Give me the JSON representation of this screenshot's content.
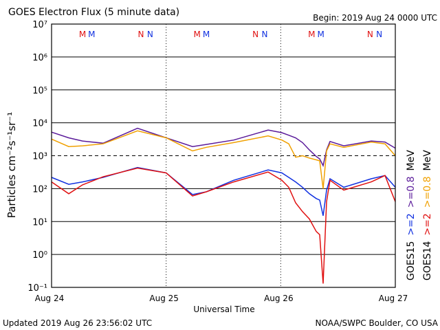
{
  "chart_data": {
    "type": "line",
    "title": "GOES Electron Flux (5 minute data)",
    "begin": "Begin: 2019 Aug 24 0000 UTC",
    "y_label": "Particles cm⁻²s⁻¹sr⁻¹",
    "x_label": "Universal Time",
    "footer_left": "Updated 2019 Aug 26 23:56:02 UTC",
    "footer_right": "NOAA/SWPC Boulder, CO USA",
    "y_log": true,
    "grid": true,
    "reference_line": 1000,
    "xlim": [
      0,
      3
    ],
    "xticks": [
      {
        "value": 0,
        "label": "Aug 24"
      },
      {
        "value": 1,
        "label": "Aug 25"
      },
      {
        "value": 2,
        "label": "Aug 26"
      },
      {
        "value": 3,
        "label": "Aug 27"
      }
    ],
    "ylim": [
      0.1,
      10000000
    ],
    "yticks": [
      {
        "value": 0.1,
        "label": "10⁻¹"
      },
      {
        "value": 1,
        "label": "10⁰"
      },
      {
        "value": 10,
        "label": "10¹"
      },
      {
        "value": 100,
        "label": "10²"
      },
      {
        "value": 1000,
        "label": "10³"
      },
      {
        "value": 10000,
        "label": "10⁴"
      },
      {
        "value": 100000,
        "label": "10⁵"
      },
      {
        "value": 1000000,
        "label": "10⁶"
      },
      {
        "value": 10000000,
        "label": "10⁷"
      }
    ],
    "x": [
      0,
      0.15,
      0.27,
      0.45,
      0.75,
      1.0,
      1.23,
      1.35,
      1.59,
      1.89,
      2.01,
      2.07,
      2.13,
      2.19,
      2.25,
      2.31,
      2.34,
      2.37,
      2.4,
      2.43,
      2.55,
      2.79,
      2.91,
      3.0
    ],
    "legend_unit": "MeV",
    "series": [
      {
        "name": ">=0.8",
        "satellite": "GOES15",
        "color": "#5a1a9a",
        "values": [
          5200,
          3500,
          2800,
          2400,
          6800,
          3500,
          1900,
          2200,
          3000,
          6000,
          5000,
          4200,
          3500,
          2500,
          1500,
          950,
          800,
          500,
          1500,
          2700,
          2000,
          2800,
          2600,
          1700
        ]
      },
      {
        "name": ">=0.8",
        "satellite": "GOES14",
        "color": "#f0a000",
        "values": [
          3200,
          1900,
          2000,
          2300,
          5700,
          3500,
          1400,
          1800,
          2500,
          4000,
          3000,
          2300,
          900,
          1000,
          850,
          750,
          700,
          100,
          1400,
          2300,
          1800,
          2600,
          2300,
          1000
        ]
      },
      {
        "name": ">=2",
        "satellite": "GOES15",
        "color": "#1030e0",
        "values": [
          220,
          135,
          160,
          220,
          440,
          300,
          66,
          80,
          180,
          370,
          300,
          220,
          160,
          110,
          70,
          50,
          45,
          15,
          90,
          200,
          110,
          200,
          250,
          110
        ]
      },
      {
        "name": ">=2",
        "satellite": "GOES14",
        "color": "#e01010",
        "values": [
          160,
          70,
          130,
          230,
          420,
          300,
          60,
          80,
          160,
          320,
          180,
          110,
          37,
          20,
          12,
          5,
          4,
          0.13,
          40,
          180,
          90,
          160,
          250,
          40
        ]
      }
    ],
    "markers": [
      {
        "label": "M",
        "x": 0.27,
        "color": "#e01010"
      },
      {
        "label": "M",
        "x": 0.35,
        "color": "#1030e0"
      },
      {
        "label": "N",
        "x": 0.78,
        "color": "#e01010"
      },
      {
        "label": "N",
        "x": 0.86,
        "color": "#1030e0"
      },
      {
        "label": "M",
        "x": 1.27,
        "color": "#e01010"
      },
      {
        "label": "M",
        "x": 1.35,
        "color": "#1030e0"
      },
      {
        "label": "N",
        "x": 1.78,
        "color": "#e01010"
      },
      {
        "label": "N",
        "x": 1.86,
        "color": "#1030e0"
      },
      {
        "label": "M",
        "x": 2.27,
        "color": "#e01010"
      },
      {
        "label": "M",
        "x": 2.35,
        "color": "#1030e0"
      },
      {
        "label": "N",
        "x": 2.78,
        "color": "#e01010"
      },
      {
        "label": "N",
        "x": 2.86,
        "color": "#1030e0"
      }
    ]
  }
}
